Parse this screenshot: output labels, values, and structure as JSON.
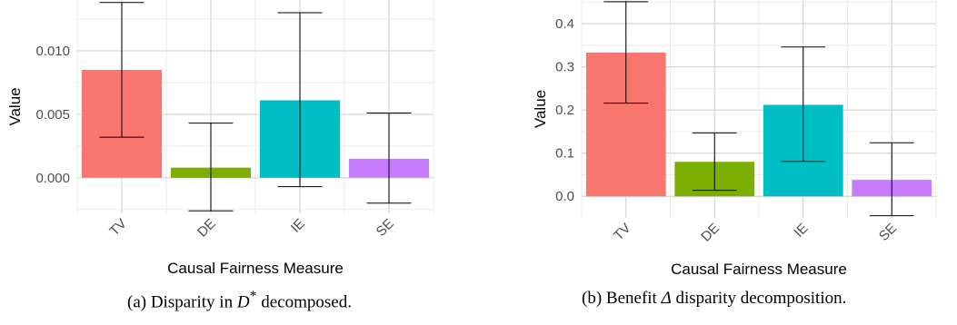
{
  "chart_data": [
    {
      "type": "bar",
      "categories": [
        "TV",
        "DE",
        "IE",
        "SE"
      ],
      "values": [
        0.0085,
        0.0008,
        0.0061,
        0.0015
      ],
      "error_low": [
        0.0032,
        -0.0026,
        -0.0007,
        -0.002
      ],
      "error_high": [
        0.0138,
        0.0043,
        0.013,
        0.0051
      ],
      "colors": [
        "#F8766D",
        "#7CAE00",
        "#00BFC4",
        "#C77CFF"
      ],
      "xlabel": "Causal Fairness Measure",
      "ylabel": "Value",
      "yticks": [
        0.0,
        0.005,
        0.01
      ],
      "ytick_labels": [
        "0.000",
        "0.005",
        "0.010"
      ],
      "ylim": [
        -0.0028,
        0.014
      ],
      "grid": true
    },
    {
      "type": "bar",
      "categories": [
        "TV",
        "DE",
        "IE",
        "SE"
      ],
      "values": [
        0.333,
        0.08,
        0.212,
        0.038
      ],
      "error_low": [
        0.216,
        0.014,
        0.081,
        -0.045
      ],
      "error_high": [
        0.451,
        0.147,
        0.346,
        0.124
      ],
      "colors": [
        "#F8766D",
        "#7CAE00",
        "#00BFC4",
        "#C77CFF"
      ],
      "xlabel": "Causal Fairness Measure",
      "ylabel": "Value",
      "yticks": [
        0.0,
        0.1,
        0.2,
        0.3,
        0.4
      ],
      "ytick_labels": [
        "0.0",
        "0.1",
        "0.2",
        "0.3",
        "0.4"
      ],
      "ylim": [
        -0.05,
        0.455
      ],
      "grid": true
    }
  ],
  "captions": [
    {
      "prefix": "(a) Disparity in ",
      "math": "D",
      "sup": "*",
      "suffix": " decomposed."
    },
    {
      "prefix": "(b) Benefit ",
      "math": "Δ",
      "sup": "",
      "suffix": " disparity decomposition."
    }
  ]
}
